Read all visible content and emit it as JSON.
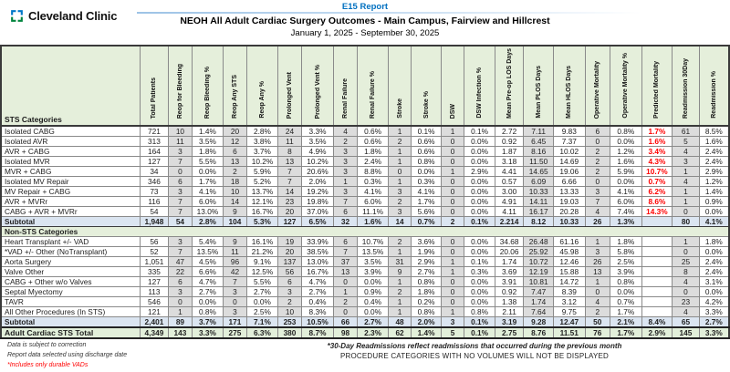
{
  "header": {
    "logo_text": "Cleveland Clinic",
    "report_link": "E15 Report",
    "title": "NEOH All Adult Cardiac Surgery Outcomes - Main Campus, Fairview and Hillcrest",
    "date_range": "January 1, 2025 - September 30, 2025"
  },
  "colors": {
    "accent_blue": "#0070c0",
    "header_green": "#e5efdb",
    "subtotal_blue": "#dbe5f1",
    "total_green": "#e2efda",
    "column_gray": "#dcdcdc",
    "alert_red": "#ff0000",
    "logo_blue": "#0077c8",
    "logo_green": "#00843d"
  },
  "table": {
    "label_header": "STS Categories",
    "columns": [
      "Total Patients",
      "Reop for Bleeding",
      "Reop Bleeding %",
      "Reop Any STS",
      "Reop Any %",
      "Prolonged Vent",
      "Prolonged Vent %",
      "Renal Failure",
      "Renal Failure %",
      "Stroke",
      "Stroke %",
      "DSW",
      "DSW Infection %",
      "Mean Pre-op LOS Days",
      "Mean PLOS Days",
      "Mean HLOS Days",
      "Operative Mortality",
      "Operative Mortality %",
      "Predicted Mortality",
      "Readmission 30Day",
      "Readmission %"
    ],
    "gray_columns": [
      1,
      3,
      5,
      7,
      9,
      11,
      14,
      16,
      19
    ],
    "predicted_mortality_col": 18,
    "rows": [
      {
        "type": "data",
        "label": "Isolated CABG",
        "values": [
          "721",
          "10",
          "1.4%",
          "20",
          "2.8%",
          "24",
          "3.3%",
          "4",
          "0.6%",
          "1",
          "0.1%",
          "1",
          "0.1%",
          "2.72",
          "7.11",
          "9.83",
          "6",
          "0.8%",
          "1.7%",
          "61",
          "8.5%"
        ]
      },
      {
        "type": "data",
        "label": "Isolated AVR",
        "values": [
          "313",
          "11",
          "3.5%",
          "12",
          "3.8%",
          "11",
          "3.5%",
          "2",
          "0.6%",
          "2",
          "0.6%",
          "0",
          "0.0%",
          "0.92",
          "6.45",
          "7.37",
          "0",
          "0.0%",
          "1.6%",
          "5",
          "1.6%"
        ]
      },
      {
        "type": "data",
        "label": "AVR + CABG",
        "values": [
          "164",
          "3",
          "1.8%",
          "6",
          "3.7%",
          "8",
          "4.9%",
          "3",
          "1.8%",
          "1",
          "0.6%",
          "0",
          "0.0%",
          "1.87",
          "8.16",
          "10.02",
          "2",
          "1.2%",
          "3.4%",
          "4",
          "2.4%"
        ]
      },
      {
        "type": "data",
        "label": "Isolated MVR",
        "values": [
          "127",
          "7",
          "5.5%",
          "13",
          "10.2%",
          "13",
          "10.2%",
          "3",
          "2.4%",
          "1",
          "0.8%",
          "0",
          "0.0%",
          "3.18",
          "11.50",
          "14.69",
          "2",
          "1.6%",
          "4.3%",
          "3",
          "2.4%"
        ]
      },
      {
        "type": "data",
        "label": "MVR + CABG",
        "values": [
          "34",
          "0",
          "0.0%",
          "2",
          "5.9%",
          "7",
          "20.6%",
          "3",
          "8.8%",
          "0",
          "0.0%",
          "1",
          "2.9%",
          "4.41",
          "14.65",
          "19.06",
          "2",
          "5.9%",
          "10.7%",
          "1",
          "2.9%"
        ]
      },
      {
        "type": "data",
        "label": "Isolated MV Repair",
        "values": [
          "346",
          "6",
          "1.7%",
          "18",
          "5.2%",
          "7",
          "2.0%",
          "1",
          "0.3%",
          "1",
          "0.3%",
          "0",
          "0.0%",
          "0.57",
          "6.09",
          "6.66",
          "0",
          "0.0%",
          "0.7%",
          "4",
          "1.2%"
        ]
      },
      {
        "type": "data",
        "label": "MV Repair + CABG",
        "values": [
          "73",
          "3",
          "4.1%",
          "10",
          "13.7%",
          "14",
          "19.2%",
          "3",
          "4.1%",
          "3",
          "4.1%",
          "0",
          "0.0%",
          "3.00",
          "10.33",
          "13.33",
          "3",
          "4.1%",
          "6.2%",
          "1",
          "1.4%"
        ]
      },
      {
        "type": "data",
        "label": "AVR + MVRr",
        "values": [
          "116",
          "7",
          "6.0%",
          "14",
          "12.1%",
          "23",
          "19.8%",
          "7",
          "6.0%",
          "2",
          "1.7%",
          "0",
          "0.0%",
          "4.91",
          "14.11",
          "19.03",
          "7",
          "6.0%",
          "8.6%",
          "1",
          "0.9%"
        ]
      },
      {
        "type": "data",
        "label": "CABG + AVR + MVRr",
        "values": [
          "54",
          "7",
          "13.0%",
          "9",
          "16.7%",
          "20",
          "37.0%",
          "6",
          "11.1%",
          "3",
          "5.6%",
          "0",
          "0.0%",
          "4.11",
          "16.17",
          "20.28",
          "4",
          "7.4%",
          "14.3%",
          "0",
          "0.0%"
        ]
      },
      {
        "type": "subtotal",
        "label": "Subtotal",
        "values": [
          "1,948",
          "54",
          "2.8%",
          "104",
          "5.3%",
          "127",
          "6.5%",
          "32",
          "1.6%",
          "14",
          "0.7%",
          "2",
          "0.1%",
          "2.214",
          "8.12",
          "10.33",
          "26",
          "1.3%",
          "",
          "80",
          "4.1%"
        ]
      },
      {
        "type": "section",
        "label": "Non-STS Categories"
      },
      {
        "type": "data",
        "label": "Heart Transplant +/- VAD",
        "values": [
          "56",
          "3",
          "5.4%",
          "9",
          "16.1%",
          "19",
          "33.9%",
          "6",
          "10.7%",
          "2",
          "3.6%",
          "0",
          "0.0%",
          "34.68",
          "26.48",
          "61.16",
          "1",
          "1.8%",
          "",
          "1",
          "1.8%"
        ]
      },
      {
        "type": "data",
        "label": "*VAD +/- Other (NoTransplant)",
        "values": [
          "52",
          "7",
          "13.5%",
          "11",
          "21.2%",
          "20",
          "38.5%",
          "7",
          "13.5%",
          "1",
          "1.9%",
          "0",
          "0.0%",
          "20.06",
          "25.92",
          "45.98",
          "3",
          "5.8%",
          "",
          "0",
          "0.0%"
        ]
      },
      {
        "type": "data",
        "label": "Aorta Surgery",
        "values": [
          "1,051",
          "47",
          "4.5%",
          "96",
          "9.1%",
          "137",
          "13.0%",
          "37",
          "3.5%",
          "31",
          "2.9%",
          "1",
          "0.1%",
          "1.74",
          "10.72",
          "12.46",
          "26",
          "2.5%",
          "",
          "25",
          "2.4%"
        ]
      },
      {
        "type": "data",
        "label": "Valve Other",
        "values": [
          "335",
          "22",
          "6.6%",
          "42",
          "12.5%",
          "56",
          "16.7%",
          "13",
          "3.9%",
          "9",
          "2.7%",
          "1",
          "0.3%",
          "3.69",
          "12.19",
          "15.88",
          "13",
          "3.9%",
          "",
          "8",
          "2.4%"
        ]
      },
      {
        "type": "data",
        "label": "CABG + Other w/o Valves",
        "values": [
          "127",
          "6",
          "4.7%",
          "7",
          "5.5%",
          "6",
          "4.7%",
          "0",
          "0.0%",
          "1",
          "0.8%",
          "0",
          "0.0%",
          "3.91",
          "10.81",
          "14.72",
          "1",
          "0.8%",
          "",
          "4",
          "3.1%"
        ]
      },
      {
        "type": "data",
        "label": "Septal Myectomy",
        "values": [
          "113",
          "3",
          "2.7%",
          "3",
          "2.7%",
          "3",
          "2.7%",
          "1",
          "0.9%",
          "2",
          "1.8%",
          "0",
          "0.0%",
          "0.92",
          "7.47",
          "8.39",
          "0",
          "0.0%",
          "",
          "0",
          "0.0%"
        ]
      },
      {
        "type": "data",
        "label": "TAVR",
        "values": [
          "546",
          "0",
          "0.0%",
          "0",
          "0.0%",
          "2",
          "0.4%",
          "2",
          "0.4%",
          "1",
          "0.2%",
          "0",
          "0.0%",
          "1.38",
          "1.74",
          "3.12",
          "4",
          "0.7%",
          "",
          "23",
          "4.2%"
        ]
      },
      {
        "type": "data",
        "label": "All Other Procedures (In STS)",
        "values": [
          "121",
          "1",
          "0.8%",
          "3",
          "2.5%",
          "10",
          "8.3%",
          "0",
          "0.0%",
          "1",
          "0.8%",
          "1",
          "0.8%",
          "2.11",
          "7.64",
          "9.75",
          "2",
          "1.7%",
          "",
          "4",
          "3.3%"
        ]
      },
      {
        "type": "subtotal",
        "label": "Subtotal",
        "values": [
          "2,401",
          "89",
          "3.7%",
          "171",
          "7.1%",
          "253",
          "10.5%",
          "66",
          "2.7%",
          "48",
          "2.0%",
          "3",
          "0.1%",
          "3.19",
          "9.28",
          "12.47",
          "50",
          "2.1%",
          "8.4%",
          "65",
          "2.7%"
        ]
      },
      {
        "type": "total",
        "label": "Adult Cardiac STS Total",
        "values": [
          "4,349",
          "143",
          "3.3%",
          "275",
          "6.3%",
          "380",
          "8.7%",
          "98",
          "2.3%",
          "62",
          "1.4%",
          "5",
          "0.1%",
          "2.75",
          "8.76",
          "11.51",
          "76",
          "1.7%",
          "2.9%",
          "145",
          "3.3%"
        ]
      }
    ]
  },
  "footnotes": {
    "left": [
      "Data is subject to correction",
      "Report data selected using discharge date",
      "*Includes only durable VADs"
    ],
    "readmission_note": "*30-Day Readmissions reflect readmissions that occurred during the previous month",
    "caps_note": "PROCEDURE CATEGORIES WITH NO VOLUMES WILL NOT BE DISPLAYED"
  }
}
